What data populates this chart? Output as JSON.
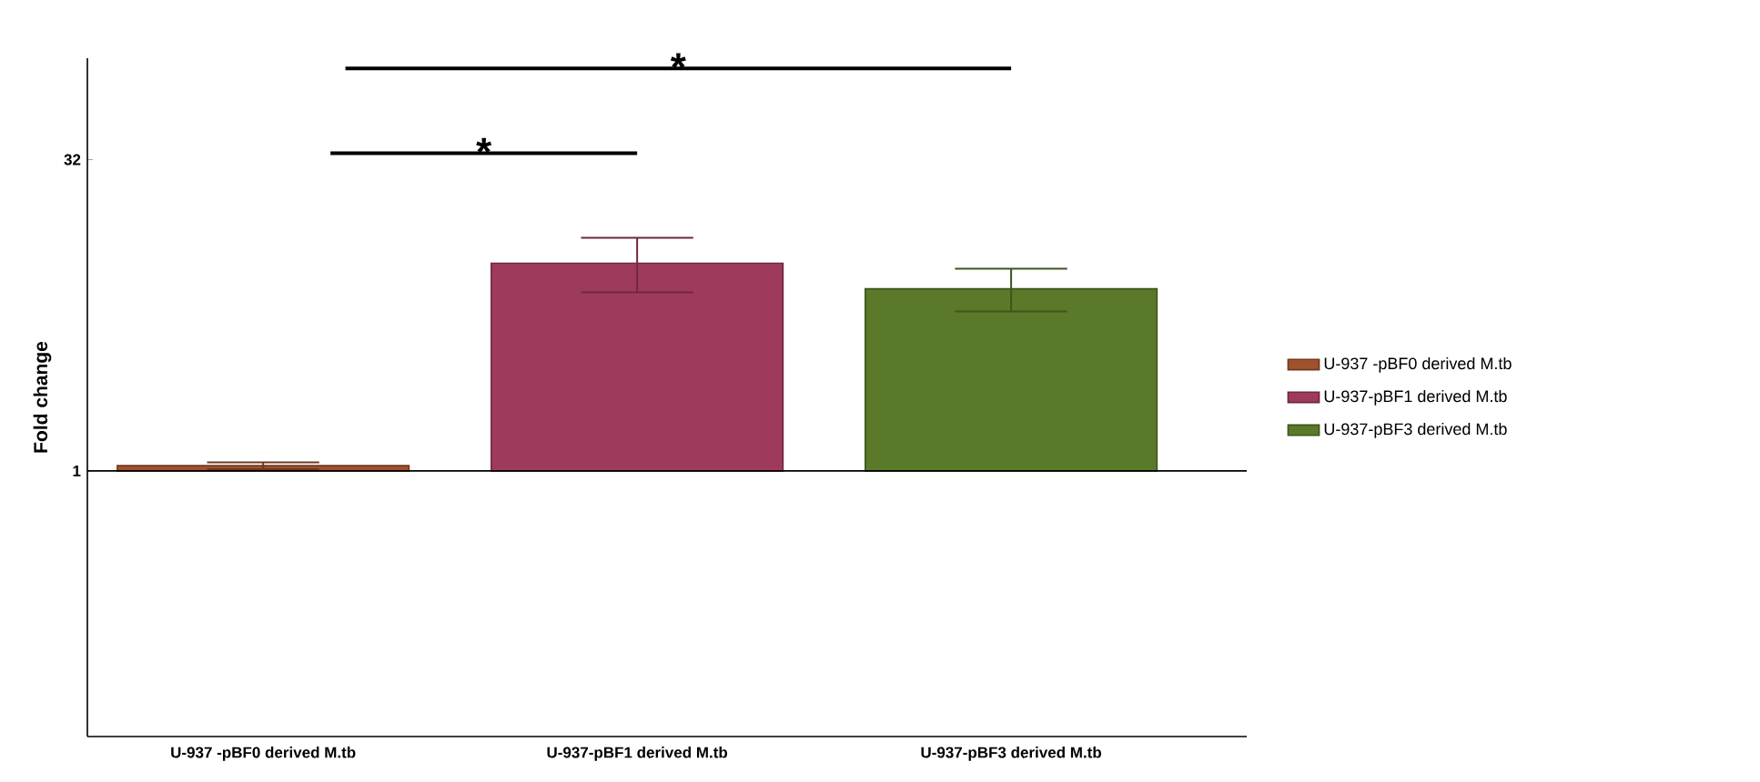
{
  "chart_data": {
    "type": "bar",
    "ylabel": "Fold change",
    "categories": [
      "U-937 -pBF0 derived M.tb",
      "U-937-pBF1 derived M.tb",
      "U-937-pBF3 derived M.tb"
    ],
    "series": [
      {
        "name": "U-937 -pBF0 derived M.tb",
        "color": "#a0522d",
        "base": [
          1,
          null,
          null
        ],
        "values": [
          0.06,
          null,
          null
        ],
        "errors": [
          [
            1.02,
            1.1
          ],
          null,
          null
        ]
      },
      {
        "name": "U-937-pBF1 derived M.tb",
        "color": "#9e3b5c",
        "base": [
          null,
          1,
          null
        ],
        "values": [
          null,
          9.1,
          null
        ],
        "errors": [
          null,
          [
            7.3,
            13.4
          ],
          null
        ]
      },
      {
        "name": "U-937-pBF3 derived M.tb",
        "color": "#5a7a2a",
        "base": [
          null,
          null,
          1
        ],
        "values": [
          null,
          null,
          6.6
        ],
        "errors": [
          null,
          null,
          [
            5.9,
            9.5
          ]
        ]
      }
    ],
    "log": "y",
    "ylim": [
      0.052,
      99
    ],
    "yticks": [
      1,
      32
    ],
    "ref_lines": [
      {
        "axis": "y",
        "value": 1
      }
    ],
    "annotations": [
      "*",
      "*"
    ],
    "legend": "right"
  }
}
